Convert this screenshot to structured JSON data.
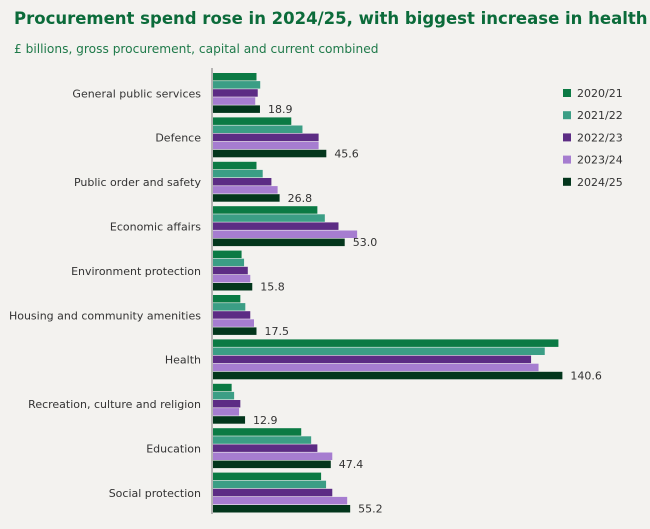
{
  "chart_data": {
    "type": "bar",
    "orientation": "horizontal",
    "title": "Procurement spend rose in 2024/25, with biggest increase in health",
    "subtitle": "£ billions, gross procurement, capital and current combined",
    "xlabel": "",
    "ylabel": "",
    "xlim": [
      0,
      145
    ],
    "grid": false,
    "legend_position": "right",
    "categories": [
      "General public services",
      "Defence",
      "Public order and safety",
      "Economic affairs",
      "Environment protection",
      "Housing and community amenities",
      "Health",
      "Recreation, culture and religion",
      "Education",
      "Social protection"
    ],
    "series": [
      {
        "name": "2020/21",
        "color": "#0b7a44",
        "values": [
          17.5,
          31.5,
          17.5,
          42.0,
          11.5,
          11.0,
          139.0,
          7.5,
          35.5,
          43.5
        ]
      },
      {
        "name": "2021/22",
        "color": "#3b9e85",
        "values": [
          19.0,
          36.0,
          20.0,
          45.0,
          12.5,
          13.0,
          133.5,
          8.5,
          39.5,
          45.5
        ]
      },
      {
        "name": "2022/23",
        "color": "#5c2c84",
        "values": [
          18.0,
          42.5,
          23.5,
          50.5,
          14.0,
          15.0,
          128.0,
          11.0,
          42.0,
          48.0
        ]
      },
      {
        "name": "2023/24",
        "color": "#a67dd0",
        "values": [
          17.0,
          42.5,
          26.0,
          58.0,
          15.0,
          16.5,
          131.0,
          10.5,
          48.0,
          54.0
        ]
      },
      {
        "name": "2024/25",
        "color": "#03361c",
        "values": [
          18.9,
          45.6,
          26.8,
          53.0,
          15.8,
          17.5,
          140.6,
          12.9,
          47.4,
          55.2
        ]
      }
    ],
    "data_labels": [
      "18.9",
      "45.6",
      "26.8",
      "53.0",
      "15.8",
      "17.5",
      "140.6",
      "12.9",
      "47.4",
      "55.2"
    ]
  }
}
